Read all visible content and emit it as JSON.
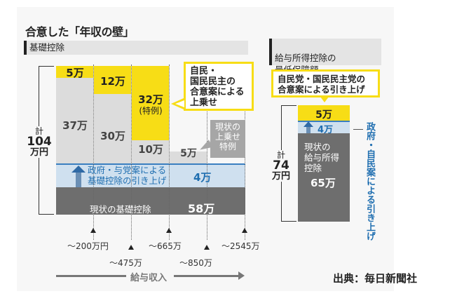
{
  "title": "合意した「年収の壁」",
  "source": "出典：毎日新聞社",
  "colors": {
    "yellow": "#f7dd16",
    "light_gray": "#dcdcdc",
    "dark_gray": "#6e6e6e",
    "light_blue": "#cfe0ef",
    "blue_text": "#1f6eb0"
  },
  "chart_data": [
    {
      "type": "bar",
      "title": "基礎控除",
      "subtype": "stacked",
      "categories": [
        "～200万円",
        "～475万",
        "～665万",
        "～850万",
        "～2545万"
      ],
      "xlabel": "給与収入",
      "unit": "万円",
      "total_label": {
        "prefix": "計",
        "value": "104",
        "suffix": "万円"
      },
      "series": [
        {
          "name": "現状の基礎控除",
          "values": [
            58,
            58,
            58,
            58,
            58
          ],
          "label": "58万"
        },
        {
          "name": "政府・与党案による基礎控除の引き上げ",
          "values": [
            4,
            4,
            4,
            4,
            4
          ],
          "label": "4万"
        },
        {
          "name": "現状の上乗せ特例",
          "values": [
            37,
            30,
            10,
            5,
            0
          ],
          "labels": [
            "37万",
            "30万",
            "10万",
            "5万",
            ""
          ]
        },
        {
          "name": "自民・国民民主の合意案による上乗せ",
          "values": [
            5,
            12,
            32,
            0,
            0
          ],
          "labels": [
            "5万",
            "12万",
            "32万",
            "",
            ""
          ],
          "note": "(特例)"
        }
      ],
      "annotations": {
        "yellow_callout": "自民・\n国民民主の\n合意案による\n上乗せ",
        "gray_callout": "現状の\n上乗せ\n特例",
        "blue_band": "政府・与党案による\n基礎控除の引き上げ",
        "base_label": "現状の基礎控除"
      }
    },
    {
      "type": "bar",
      "title": "給与所得控除の\n最低保障額",
      "subtype": "stacked",
      "categories": [
        "最低保障額"
      ],
      "unit": "万円",
      "total_label": {
        "prefix": "計",
        "value": "74",
        "suffix": "万円"
      },
      "series": [
        {
          "name": "現状の給与所得控除",
          "values": [
            65
          ],
          "label": "65万"
        },
        {
          "name": "政府・自民案による引き上げ",
          "values": [
            4
          ],
          "label": "4万"
        },
        {
          "name": "自民党・国民民主党の合意案による引き上げ",
          "values": [
            5
          ],
          "label": "5万"
        }
      ],
      "annotations": {
        "yellow_callout": "自民党・国民民主党の\n合意案による引き上げ",
        "blue_vertical": "政府・自民案による引き上げ",
        "base_label": "現状の\n給与所得\n控除"
      }
    }
  ]
}
